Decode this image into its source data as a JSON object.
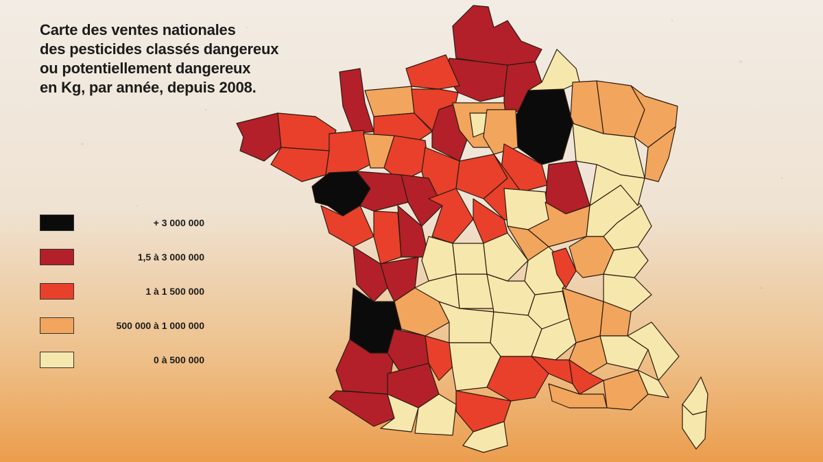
{
  "title_lines": [
    "Carte des ventes nationales",
    "des pesticides classés dangereux",
    "ou potentiellement dangereux",
    "en Kg, par année, depuis 2008."
  ],
  "legend": [
    {
      "label": "+ 3 000 000",
      "color": "#0b0b0b"
    },
    {
      "label": "1,5 à 3 000 000",
      "color": "#b3202a"
    },
    {
      "label": "1 à 1 500 000",
      "color": "#e8402b"
    },
    {
      "label": "500 000 à 1 000 000",
      "color": "#f2a55c"
    },
    {
      "label": "0 à 500 000",
      "color": "#f6e7ac"
    }
  ]
}
